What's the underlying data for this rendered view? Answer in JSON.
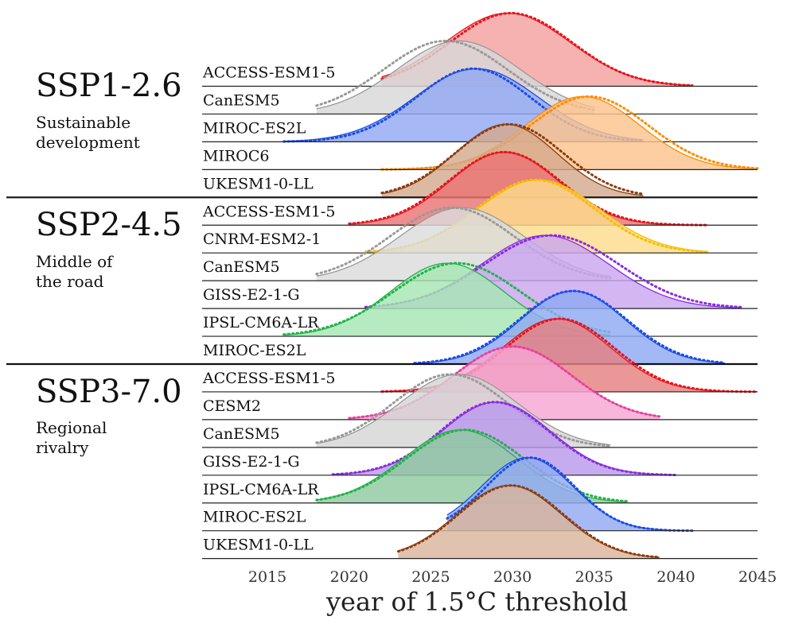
{
  "chart_data": {
    "type": "ridgeline",
    "xlabel": "year of 1.5°C threshold",
    "xlim": [
      2011,
      2045
    ],
    "xticks": [
      2015,
      2020,
      2025,
      2030,
      2035,
      2040,
      2045
    ],
    "legend": "none",
    "grid": false,
    "groups": [
      {
        "title": "SSP1-2.6",
        "subtitle": "Sustainable\ndevelopment",
        "models": [
          {
            "name": "ACCESS-ESM1-5",
            "color": "#e8141c",
            "fill": "#f4a0a0",
            "peak": 2029.7,
            "sd": 3.8,
            "dotted_peak": 2029.9,
            "dotted_sd": 3.7,
            "range": [
              2022,
              2041
            ]
          },
          {
            "name": "CanESM5",
            "color": "#999999",
            "fill": "#d8d8d8",
            "peak": 2026.7,
            "sd": 3.8,
            "dotted_peak": 2025.9,
            "dotted_sd": 3.8,
            "range": [
              2018,
              2035
            ]
          },
          {
            "name": "MIROC-ES2L",
            "color": "#1a4de6",
            "fill": "#93a8f3",
            "peak": 2027.8,
            "sd": 3.8,
            "dotted_peak": 2027.6,
            "dotted_sd": 3.5,
            "range": [
              2016,
              2038
            ]
          },
          {
            "name": "MIROC6",
            "color": "#ff8c00",
            "fill": "#fcc38d",
            "peak": 2034.3,
            "sd": 3.5,
            "dotted_peak": 2034.7,
            "dotted_sd": 3.6,
            "range": [
              2022,
              2045
            ]
          },
          {
            "name": "UKESM1-0-LL",
            "color": "#8b3c0f",
            "fill": "#d4aa8e",
            "peak": 2029.6,
            "sd": 3.1,
            "dotted_peak": 2029.8,
            "dotted_sd": 3.3,
            "range": [
              2022,
              2038
            ]
          }
        ]
      },
      {
        "title": "SSP2-4.5",
        "subtitle": "Middle of\nthe road",
        "models": [
          {
            "name": "ACCESS-ESM1-5",
            "color": "#e8141c",
            "fill": "#ea7474",
            "peak": 2029.5,
            "sd": 3.3,
            "dotted_peak": 2029.5,
            "dotted_sd": 3.4,
            "range": [
              2020,
              2042
            ]
          },
          {
            "name": "CNRM-ESM2-1",
            "color": "#f5c000",
            "fill": "#fddc8c",
            "peak": 2031.6,
            "sd": 3.7,
            "dotted_peak": 2031.4,
            "dotted_sd": 3.6,
            "range": [
              2021,
              2042
            ]
          },
          {
            "name": "CanESM5",
            "color": "#999999",
            "fill": "#dcdcdc",
            "peak": 2026.9,
            "sd": 3.8,
            "dotted_peak": 2026.3,
            "dotted_sd": 3.8,
            "range": [
              2018,
              2036
            ]
          },
          {
            "name": "GISS-E2-1-G",
            "color": "#8a2be2",
            "fill": "#c9a6ef",
            "peak": 2032.0,
            "sd": 3.9,
            "dotted_peak": 2032.4,
            "dotted_sd": 4.1,
            "range": [
              2021,
              2044
            ]
          },
          {
            "name": "IPSL-CM6A-LR",
            "color": "#22b24a",
            "fill": "#a6e6b3",
            "peak": 2026.0,
            "sd": 3.5,
            "dotted_peak": 2026.6,
            "dotted_sd": 3.9,
            "range": [
              2016,
              2036
            ]
          },
          {
            "name": "MIROC-ES2L",
            "color": "#1a4de6",
            "fill": "#8faaf3",
            "peak": 2033.7,
            "sd": 3.2,
            "dotted_peak": 2033.7,
            "dotted_sd": 3.3,
            "range": [
              2024,
              2043
            ]
          }
        ]
      },
      {
        "title": "SSP3-7.0",
        "subtitle": "Regional\nrivalry",
        "models": [
          {
            "name": "ACCESS-ESM1-5",
            "color": "#e8141c",
            "fill": "#e58080",
            "peak": 2032.7,
            "sd": 3.3,
            "dotted_peak": 2032.9,
            "dotted_sd": 3.3,
            "range": [
              2022,
              2045
            ]
          },
          {
            "name": "CESM2",
            "color": "#e8409c",
            "fill": "#f6a6d3",
            "peak": 2030.0,
            "sd": 3.6,
            "dotted_peak": 2030.0,
            "dotted_sd": 3.6,
            "range": [
              2020,
              2039
            ]
          },
          {
            "name": "CanESM5",
            "color": "#999999",
            "fill": "#d6d6d6",
            "peak": 2026.7,
            "sd": 3.6,
            "dotted_peak": 2026.2,
            "dotted_sd": 3.5,
            "range": [
              2018,
              2036
            ]
          },
          {
            "name": "GISS-E2-1-G",
            "color": "#8a2be2",
            "fill": "#b998ec",
            "peak": 2029.0,
            "sd": 3.3,
            "dotted_peak": 2028.9,
            "dotted_sd": 3.3,
            "range": [
              2019,
              2040
            ]
          },
          {
            "name": "IPSL-CM6A-LR",
            "color": "#22b24a",
            "fill": "#8fc9a0",
            "peak": 2026.8,
            "sd": 3.5,
            "dotted_peak": 2027.1,
            "dotted_sd": 3.6,
            "range": [
              2018,
              2037
            ]
          },
          {
            "name": "MIROC-ES2L",
            "color": "#1a4de6",
            "fill": "#92a9f2",
            "peak": 2030.9,
            "sd": 2.8,
            "dotted_peak": 2031.1,
            "dotted_sd": 2.7,
            "range": [
              2026,
              2041
            ]
          },
          {
            "name": "UKESM1-0-LL",
            "color": "#8b3c0f",
            "fill": "#d9b59c",
            "peak": 2029.8,
            "sd": 3.2,
            "dotted_peak": 2029.9,
            "dotted_sd": 3.2,
            "range": [
              2023,
              2039
            ]
          }
        ]
      }
    ]
  }
}
